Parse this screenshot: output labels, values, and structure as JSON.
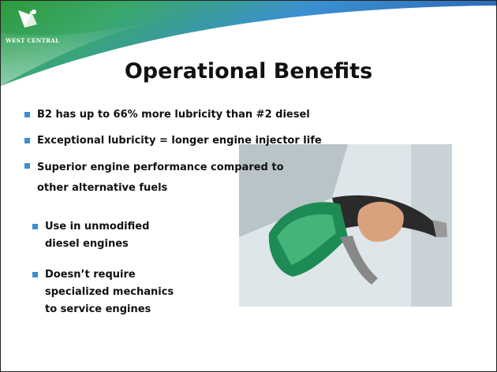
{
  "logo": {
    "text": "WEST CENTRAL"
  },
  "title": "Operational Benefits",
  "bullets": [
    "B2 has up to 66% more lubricity than #2 diesel",
    "Exceptional lubricity = longer engine injector life",
    "Superior engine performance compared to other alternative fuels",
    "Use in unmodified diesel engines",
    "Doesn’t require specialized mechanics to  service engines"
  ]
}
